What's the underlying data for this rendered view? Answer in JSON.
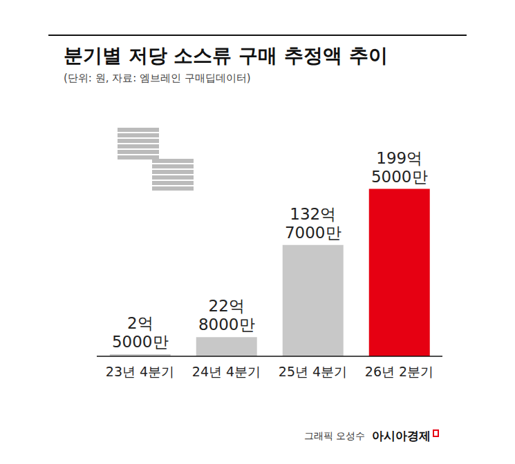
{
  "chart_data": {
    "type": "bar",
    "title": "분기별 저당 소스류 구매 추정액 추이",
    "subtitle": "(단위: 원, 자료: 엠브레인 구매딥데이터)",
    "categories": [
      "23년 4분기",
      "24년 4분기",
      "25년 4분기",
      "26년 2분기"
    ],
    "values": [
      250000000,
      2280000000,
      13270000000,
      19950000000
    ],
    "value_labels": [
      "2억 5000만",
      "22억 8000만",
      "132억 7000만",
      "199억 5000만"
    ],
    "colors": [
      "#c8c8c8",
      "#c8c8c8",
      "#c8c8c8",
      "#e60012"
    ],
    "ylim": [
      0,
      26000000000
    ],
    "grid": false,
    "data_labels": true,
    "tick_labels": "x",
    "annotations": [
      "그래픽 오성수",
      "아시아경제"
    ]
  }
}
